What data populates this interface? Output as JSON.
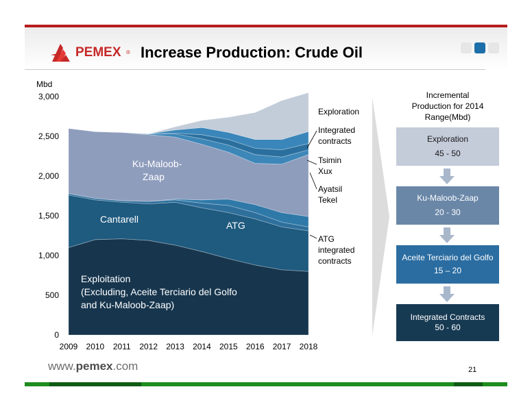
{
  "slide": {
    "brand": "PEMEX",
    "title": "Increase Production: Crude Oil",
    "footer_url_prefix": "www.",
    "footer_url_brand": "pemex",
    "footer_url_suffix": ".com",
    "page_number": "21"
  },
  "chart_data": {
    "type": "area",
    "stacked": true,
    "title": "",
    "xlabel": "",
    "ylabel": "Mbd",
    "x": [
      2009,
      2010,
      2011,
      2012,
      2013,
      2014,
      2015,
      2016,
      2017,
      2018
    ],
    "x_tick_labels": [
      "2009",
      "2010",
      "2011",
      "2012",
      "2013",
      "2014",
      "2015",
      "2016",
      "2017",
      "2018"
    ],
    "ylim": [
      0,
      3000
    ],
    "y_ticks": [
      0,
      500,
      1000,
      1500,
      2000,
      2500,
      3000
    ],
    "y_tick_labels": [
      "0",
      "500",
      "1,000",
      "1,500",
      "2,000",
      "2,500",
      "3,000"
    ],
    "grid": false,
    "series": [
      {
        "name": "Exploitation (Excluding, Aceite Terciario del Golfo and Ku-Maloob-Zaap)",
        "color": "#17364e",
        "values": [
          1100,
          1200,
          1210,
          1190,
          1130,
          1050,
          960,
          880,
          820,
          800
        ]
      },
      {
        "name": "Cantarell",
        "color": "#1f5a7f",
        "values": [
          660,
          500,
          460,
          460,
          540,
          550,
          580,
          580,
          540,
          510
        ]
      },
      {
        "name": "ATG",
        "color": "#2e6f9c",
        "values": [
          20,
          20,
          20,
          30,
          30,
          60,
          90,
          80,
          60,
          50
        ]
      },
      {
        "name": "ATG integrated contracts",
        "color": "#2f79a8",
        "values": [
          0,
          0,
          0,
          0,
          10,
          40,
          80,
          100,
          120,
          130
        ]
      },
      {
        "name": "Ku-Maloob-Zaap",
        "color": "#8f9dbd",
        "values": [
          820,
          840,
          860,
          840,
          780,
          700,
          590,
          520,
          610,
          780
        ]
      },
      {
        "name": "Ayatsil Tekel",
        "color": "#3d87b8",
        "values": [
          0,
          0,
          0,
          10,
          40,
          70,
          90,
          110,
          90,
          60
        ]
      },
      {
        "name": "Tsimin Xux",
        "color": "#2a6f9e",
        "values": [
          0,
          0,
          0,
          0,
          10,
          50,
          70,
          80,
          90,
          80
        ]
      },
      {
        "name": "Integrated contracts",
        "color": "#3a86ba",
        "values": [
          0,
          0,
          0,
          0,
          40,
          90,
          90,
          110,
          130,
          150
        ]
      },
      {
        "name": "Exploration",
        "color": "#c3ccd9",
        "values": [
          0,
          0,
          0,
          0,
          40,
          90,
          190,
          340,
          490,
          490
        ]
      }
    ],
    "area_labels": {
      "exploitation": [
        "Exploitation",
        "(Excluding, Aceite Terciario del Golfo",
        "and Ku-Maloob-Zaap)"
      ],
      "cantarell": "Cantarell",
      "atg": "ATG",
      "kmz": [
        "Ku-Maloob-",
        "Zaap"
      ]
    },
    "right_labels": {
      "exploration": [
        "Exploration"
      ],
      "integrated": [
        "Integrated",
        "contracts"
      ],
      "tsimin": [
        "Tsimin",
        "Xux"
      ],
      "ayatsil": [
        "Ayatsil",
        "Tekel"
      ],
      "atg_integrated": [
        "ATG",
        "integrated",
        "contracts"
      ]
    },
    "colors": {
      "exploration": "#c3ccd9",
      "chevron": "#dcdcdc"
    }
  },
  "incremental": {
    "title_lines": [
      "Incremental",
      "Production for 2014",
      "Range(Mbd)"
    ],
    "boxes": [
      {
        "label": "Exploration",
        "range": "45 - 50",
        "bg": "#c4cbd9",
        "fg": "#1a1a1a"
      },
      {
        "label": "Ku-Maloob-Zaap",
        "range": "20 - 30",
        "bg": "#6a87a8",
        "fg": "#ffffff"
      },
      {
        "label": "Aceite Terciario del Golfo",
        "range": "15 – 20",
        "bg": "#2b6da1",
        "fg": "#ffffff"
      },
      {
        "label": "Integrated Contracts",
        "range": "50 - 60",
        "bg": "#173a53",
        "fg": "#ffffff"
      }
    ],
    "arrow_color": "#a9b7cb"
  }
}
